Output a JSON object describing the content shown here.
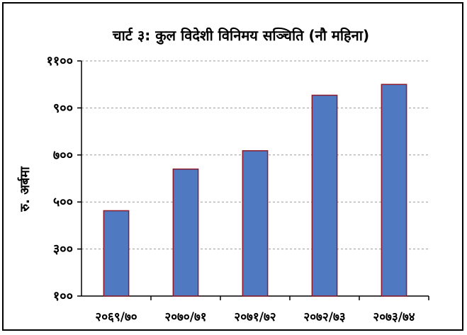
{
  "chart_data": {
    "type": "bar",
    "title": "चार्ट ३: कुल विदेशी विनिमय सञ्चिति (नौ महिना)",
    "ylabel": "रु. अर्बमा",
    "xlabel": "",
    "categories": [
      "२०६९/७०",
      "२०७०/७१",
      "२०७१/७२",
      "२०७२/७३",
      "२०७३/७४"
    ],
    "values": [
      463,
      640,
      718,
      954,
      1000
    ],
    "ylim": [
      100,
      1100
    ],
    "yticks": [
      100,
      300,
      500,
      700,
      900,
      1100
    ],
    "ytick_labels": [
      "१००",
      "३००",
      "५००",
      "७००",
      "९००",
      "११००"
    ],
    "grid": true,
    "legend": "none",
    "colors": {
      "bar_fill": "#4f79c0",
      "bar_stroke": "#8b1a2b",
      "grid": "#9a9a9a"
    }
  }
}
